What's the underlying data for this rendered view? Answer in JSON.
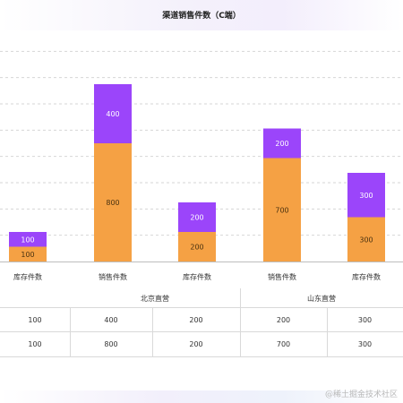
{
  "chart_data": {
    "type": "bar",
    "stacked": true,
    "title": "渠道销售件数（C端）",
    "groups": [
      {
        "name": "",
        "categories": [
          "库存件数"
        ]
      },
      {
        "name": "北京直营",
        "categories": [
          "销售件数",
          "库存件数"
        ]
      },
      {
        "name": "山东直营",
        "categories": [
          "销售件数",
          "库存件数"
        ]
      }
    ],
    "categories": [
      "库存件数",
      "销售件数",
      "库存件数",
      "销售件数",
      "库存件数"
    ],
    "series": [
      {
        "values": [
          100,
          800,
          200,
          700,
          300
        ],
        "color": "#f5a144"
      },
      {
        "values": [
          100,
          400,
          200,
          200,
          300
        ],
        "color": "#9b45fa"
      }
    ],
    "ylim": [
      0,
      1600
    ],
    "grid": true
  },
  "table": {
    "rows": [
      [
        "100",
        "400",
        "200",
        "200",
        "300"
      ],
      [
        "100",
        "800",
        "200",
        "700",
        "300"
      ]
    ]
  },
  "watermark": "@稀土掘金技术社区"
}
